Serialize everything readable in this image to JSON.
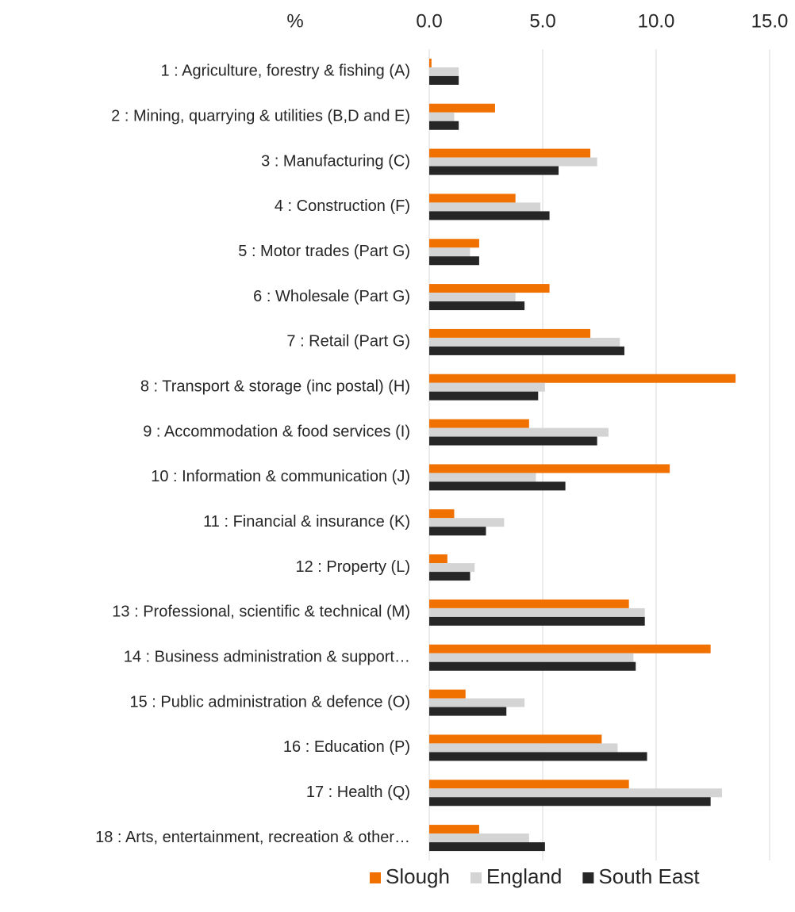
{
  "chart_data": {
    "type": "hbar",
    "x_label": "%",
    "categories": [
      "1 : Agriculture, forestry & fishing (A)",
      "2 : Mining, quarrying & utilities (B,D and E)",
      "3 : Manufacturing (C)",
      "4 : Construction (F)",
      "5 : Motor trades (Part G)",
      "6 : Wholesale (Part G)",
      "7 : Retail (Part G)",
      "8 : Transport & storage (inc postal) (H)",
      "9 : Accommodation & food services (I)",
      "10 : Information & communication (J)",
      "11 : Financial & insurance (K)",
      "12 : Property (L)",
      "13 : Professional, scientific & technical (M)",
      "14 : Business administration & support…",
      "15 : Public administration & defence (O)",
      "16 : Education (P)",
      "17 : Health (Q)",
      "18 : Arts, entertainment, recreation & other…"
    ],
    "series": [
      {
        "name": "Slough",
        "color": "#f07000",
        "values": [
          0.1,
          2.9,
          7.1,
          3.8,
          2.2,
          5.3,
          7.1,
          13.5,
          4.4,
          10.6,
          1.1,
          0.8,
          8.8,
          12.4,
          1.6,
          7.6,
          8.8,
          2.2
        ]
      },
      {
        "name": "England",
        "color": "#d4d4d4",
        "values": [
          1.3,
          1.1,
          7.4,
          4.9,
          1.8,
          3.8,
          8.4,
          5.1,
          7.9,
          4.7,
          3.3,
          2.0,
          9.5,
          9.0,
          4.2,
          8.3,
          12.9,
          4.4
        ]
      },
      {
        "name": "South East",
        "color": "#262626",
        "values": [
          1.3,
          1.3,
          5.7,
          5.3,
          2.2,
          4.2,
          8.6,
          4.8,
          7.4,
          6.0,
          2.5,
          1.8,
          9.5,
          9.1,
          3.4,
          9.6,
          12.4,
          5.1
        ]
      }
    ],
    "xlim": [
      0,
      15
    ],
    "xticks": [
      {
        "value": 0,
        "label": "0.0"
      },
      {
        "value": 5,
        "label": "5.0"
      },
      {
        "value": 10,
        "label": "10.0"
      },
      {
        "value": 15,
        "label": "15.0"
      }
    ],
    "grid": true,
    "legend": "bottom"
  }
}
